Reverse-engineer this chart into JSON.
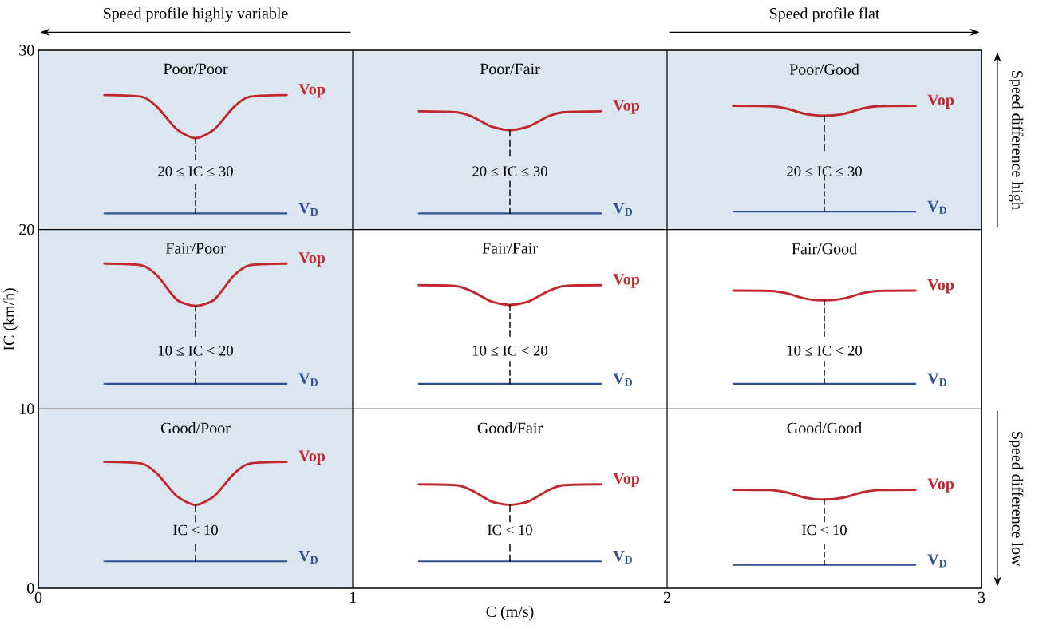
{
  "chart_data": {
    "type": "line",
    "xlabel": "C (m/s)",
    "ylabel": "IC (km/h)",
    "xlim": [
      0,
      3
    ],
    "ylim": [
      0,
      30
    ],
    "xticks": [
      0,
      1,
      2,
      3
    ],
    "yticks": [
      0,
      10,
      20,
      30
    ],
    "grid": true,
    "marker": "none",
    "bands": [
      {
        "axis": "x",
        "from": 0,
        "to": 1,
        "color": "#dce6f1"
      },
      {
        "axis": "y",
        "from": 20,
        "to": 30,
        "color": "#dce6f1"
      }
    ],
    "annotations": [
      "Poor/Poor",
      "Poor/Fair",
      "Poor/Good",
      "Fair/Poor",
      "Fair/Fair",
      "Fair/Good",
      "Good/Poor",
      "Good/Fair",
      "Good/Good",
      "Speed profile highly variable",
      "Speed profile flat",
      "Speed difference high",
      "Speed difference low",
      "20 ≤ IC ≤ 30",
      "20 ≤ IC ≤ 30",
      "20 ≤ IC ≤ 30",
      "10 ≤ IC < 20",
      "10 ≤ IC < 20",
      "10 ≤ IC < 20",
      "IC < 10",
      "IC < 10",
      "IC < 10"
    ],
    "series": [
      {
        "name": "Vop",
        "color": "#c0282d",
        "x": [
          0.21,
          0.33,
          0.38,
          0.44,
          0.5,
          0.56,
          0.62,
          0.67,
          0.79
        ],
        "values": [
          27.5,
          27.4,
          26.8,
          25.6,
          25.1,
          25.6,
          26.8,
          27.4,
          27.5
        ]
      },
      {
        "name": "Vop",
        "color": "#c0282d",
        "x": [
          1.21,
          1.33,
          1.38,
          1.44,
          1.5,
          1.56,
          1.62,
          1.67,
          1.79
        ],
        "values": [
          26.6,
          26.55,
          26.3,
          25.75,
          25.55,
          25.75,
          26.3,
          26.55,
          26.6
        ]
      },
      {
        "name": "Vop",
        "color": "#c0282d",
        "x": [
          2.21,
          2.33,
          2.38,
          2.44,
          2.5,
          2.56,
          2.62,
          2.67,
          2.79
        ],
        "values": [
          26.9,
          26.88,
          26.75,
          26.45,
          26.35,
          26.45,
          26.75,
          26.88,
          26.9
        ]
      },
      {
        "name": "Vop",
        "color": "#c0282d",
        "x": [
          0.21,
          0.33,
          0.38,
          0.44,
          0.5,
          0.56,
          0.62,
          0.67,
          0.79
        ],
        "values": [
          18.1,
          18.0,
          17.4,
          16.1,
          15.75,
          16.1,
          17.4,
          18.0,
          18.1
        ]
      },
      {
        "name": "Vop",
        "color": "#c0282d",
        "x": [
          1.21,
          1.33,
          1.38,
          1.44,
          1.5,
          1.56,
          1.62,
          1.67,
          1.79
        ],
        "values": [
          16.9,
          16.85,
          16.55,
          16.0,
          15.8,
          16.0,
          16.55,
          16.85,
          16.9
        ]
      },
      {
        "name": "Vop",
        "color": "#c0282d",
        "x": [
          2.21,
          2.33,
          2.38,
          2.44,
          2.5,
          2.56,
          2.62,
          2.67,
          2.79
        ],
        "values": [
          16.6,
          16.58,
          16.45,
          16.15,
          16.05,
          16.15,
          16.45,
          16.58,
          16.6
        ]
      },
      {
        "name": "Vop",
        "color": "#c0282d",
        "x": [
          0.21,
          0.33,
          0.38,
          0.44,
          0.5,
          0.56,
          0.62,
          0.67,
          0.79
        ],
        "values": [
          7.05,
          6.95,
          6.35,
          5.15,
          4.65,
          5.15,
          6.35,
          6.95,
          7.05
        ]
      },
      {
        "name": "Vop",
        "color": "#c0282d",
        "x": [
          1.21,
          1.33,
          1.38,
          1.44,
          1.5,
          1.56,
          1.62,
          1.67,
          1.79
        ],
        "values": [
          5.8,
          5.75,
          5.45,
          4.85,
          4.65,
          4.85,
          5.45,
          5.75,
          5.8
        ]
      },
      {
        "name": "Vop",
        "color": "#c0282d",
        "x": [
          2.21,
          2.33,
          2.38,
          2.44,
          2.5,
          2.56,
          2.62,
          2.67,
          2.79
        ],
        "values": [
          5.5,
          5.48,
          5.35,
          5.05,
          4.95,
          5.05,
          5.35,
          5.48,
          5.5
        ]
      },
      {
        "name": "V$_{D}$",
        "color": "#2e5090",
        "x": [
          0.21,
          0.79
        ],
        "values": [
          20.9,
          20.9
        ]
      },
      {
        "name": "V$_{D}$",
        "color": "#2e5090",
        "x": [
          1.21,
          1.79
        ],
        "values": [
          20.9,
          20.9
        ]
      },
      {
        "name": "V$_{D}$",
        "color": "#2e5090",
        "x": [
          2.21,
          2.79
        ],
        "values": [
          21.0,
          21.0
        ]
      },
      {
        "name": "V$_{D}$",
        "color": "#2e5090",
        "x": [
          0.21,
          0.79
        ],
        "values": [
          11.4,
          11.4
        ]
      },
      {
        "name": "V$_{D}$",
        "color": "#2e5090",
        "x": [
          1.21,
          1.79
        ],
        "values": [
          11.4,
          11.4
        ]
      },
      {
        "name": "V$_{D}$",
        "color": "#2e5090",
        "x": [
          2.21,
          2.79
        ],
        "values": [
          11.4,
          11.4
        ]
      },
      {
        "name": "V$_{D}$",
        "color": "#2e5090",
        "x": [
          0.21,
          0.79
        ],
        "values": [
          1.5,
          1.5
        ]
      },
      {
        "name": "V$_{D}$",
        "color": "#2e5090",
        "x": [
          1.21,
          1.79
        ],
        "values": [
          1.5,
          1.5
        ]
      },
      {
        "name": "V$_{D}$",
        "color": "#2e5090",
        "x": [
          2.21,
          2.79
        ],
        "values": [
          1.3,
          1.3
        ]
      },
      {
        "color": "#000000",
        "line_style": "dashed",
        "x": [
          0.5,
          0.5
        ],
        "values": [
          25.1,
          23.9
        ]
      },
      {
        "color": "#000000",
        "line_style": "dashed",
        "x": [
          0.5,
          0.5
        ],
        "values": [
          22.5,
          20.9
        ]
      },
      {
        "color": "#000000",
        "line_style": "dashed",
        "x": [
          1.5,
          1.5
        ],
        "values": [
          25.55,
          24.1
        ]
      },
      {
        "color": "#000000",
        "line_style": "dashed",
        "x": [
          1.5,
          1.5
        ],
        "values": [
          22.7,
          20.9
        ]
      },
      {
        "color": "#000000",
        "line_style": "dashed",
        "x": [
          2.5,
          2.5
        ],
        "values": [
          26.35,
          24.4
        ]
      },
      {
        "color": "#000000",
        "line_style": "dashed",
        "x": [
          2.5,
          2.5
        ],
        "values": [
          23.0,
          21.0
        ]
      },
      {
        "color": "#000000",
        "line_style": "dashed",
        "x": [
          0.5,
          0.5
        ],
        "values": [
          15.75,
          14.05
        ]
      },
      {
        "color": "#000000",
        "line_style": "dashed",
        "x": [
          0.5,
          0.5
        ],
        "values": [
          12.65,
          11.4
        ]
      },
      {
        "color": "#000000",
        "line_style": "dashed",
        "x": [
          1.5,
          1.5
        ],
        "values": [
          15.8,
          14.05
        ]
      },
      {
        "color": "#000000",
        "line_style": "dashed",
        "x": [
          1.5,
          1.5
        ],
        "values": [
          12.65,
          11.4
        ]
      },
      {
        "color": "#000000",
        "line_style": "dashed",
        "x": [
          2.5,
          2.5
        ],
        "values": [
          16.05,
          14.05
        ]
      },
      {
        "color": "#000000",
        "line_style": "dashed",
        "x": [
          2.5,
          2.5
        ],
        "values": [
          12.65,
          11.4
        ]
      },
      {
        "color": "#000000",
        "line_style": "dashed",
        "x": [
          0.5,
          0.5
        ],
        "values": [
          4.65,
          3.7
        ]
      },
      {
        "color": "#000000",
        "line_style": "dashed",
        "x": [
          0.5,
          0.5
        ],
        "values": [
          2.45,
          1.5
        ]
      },
      {
        "color": "#000000",
        "line_style": "dashed",
        "x": [
          1.5,
          1.5
        ],
        "values": [
          4.65,
          3.7
        ]
      },
      {
        "color": "#000000",
        "line_style": "dashed",
        "x": [
          1.5,
          1.5
        ],
        "values": [
          2.45,
          1.5
        ]
      },
      {
        "color": "#000000",
        "line_style": "dashed",
        "x": [
          2.5,
          2.5
        ],
        "values": [
          4.95,
          3.7
        ]
      },
      {
        "color": "#000000",
        "line_style": "dashed",
        "x": [
          2.5,
          2.5
        ],
        "values": [
          2.45,
          1.3
        ]
      }
    ]
  }
}
